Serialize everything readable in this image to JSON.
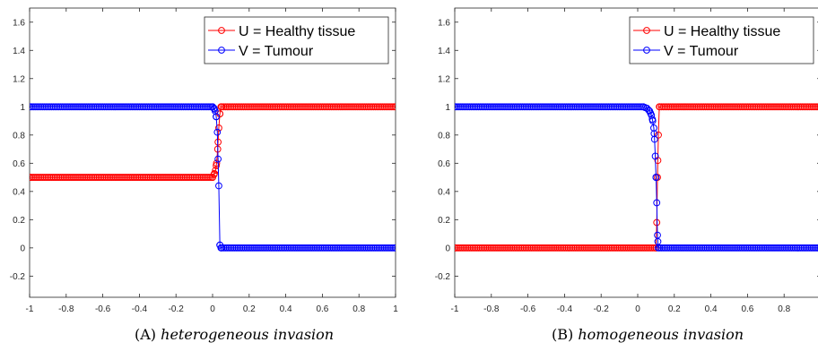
{
  "chart_data": [
    {
      "type": "scatter",
      "xlim": [
        -1,
        1
      ],
      "ylim": [
        -0.35,
        1.7
      ],
      "x_ticks": [
        -1,
        -0.8,
        -0.6,
        -0.4,
        -0.2,
        0,
        0.2,
        0.4,
        0.6,
        0.8,
        1
      ],
      "x_tick_labels": [
        "-1",
        "-0.8",
        "-0.6",
        "-0.4",
        "-0.2",
        "0",
        "0.2",
        "0.4",
        "0.6",
        "0.8",
        "1"
      ],
      "y_ticks": [
        -0.2,
        0,
        0.2,
        0.4,
        0.6,
        0.8,
        1,
        1.2,
        1.4,
        1.6
      ],
      "y_tick_labels": [
        "-0.2",
        "0",
        "0.2",
        "0.4",
        "0.6",
        "0.8",
        "1",
        "1.2",
        "1.4",
        "1.6"
      ],
      "grid": false,
      "legend_position": "top-right",
      "series": [
        {
          "name": "U = Healthy tissue",
          "color": "#ff0000",
          "marker": "circle",
          "x": [
            -1,
            0.0,
            0.008,
            0.016,
            0.022,
            0.028,
            0.034,
            0.04,
            0.046,
            1
          ],
          "y": [
            0.5,
            0.5,
            0.52,
            0.55,
            0.6,
            0.7,
            0.85,
            0.95,
            1.0,
            1.0
          ]
        },
        {
          "name": "V = Tumour",
          "color": "#0000ff",
          "marker": "circle",
          "x": [
            -1,
            0.0,
            0.008,
            0.014,
            0.02,
            0.026,
            0.034,
            0.04,
            0.046,
            1
          ],
          "y": [
            1.0,
            1.0,
            0.99,
            0.97,
            0.93,
            0.82,
            0.44,
            0.02,
            0.0,
            0.0
          ]
        }
      ]
    },
    {
      "type": "scatter",
      "xlim": [
        -1,
        1
      ],
      "ylim": [
        -0.35,
        1.7
      ],
      "x_ticks": [
        -1,
        -0.8,
        -0.6,
        -0.4,
        -0.2,
        0,
        0.2,
        0.4,
        0.6,
        0.8,
        1
      ],
      "x_tick_labels": [
        "-1",
        "-0.8",
        "-0.6",
        "-0.4",
        "-0.2",
        "0",
        "0.2",
        "0.4",
        "0.6",
        "0.8",
        ""
      ],
      "y_ticks": [
        -0.2,
        0,
        0.2,
        0.4,
        0.6,
        0.8,
        1,
        1.2,
        1.4,
        1.6
      ],
      "y_tick_labels": [
        "-0.2",
        "0",
        "0.2",
        "0.4",
        "0.6",
        "0.8",
        "1",
        "1.2",
        "1.4",
        "1.6"
      ],
      "grid": false,
      "legend_position": "top-right",
      "series": [
        {
          "name": "U = Healthy tissue",
          "color": "#ff0000",
          "marker": "circle",
          "x": [
            -1,
            0.1,
            0.104,
            0.108,
            0.113,
            0.118,
            1
          ],
          "y": [
            0.0,
            0.0,
            0.18,
            0.5,
            0.8,
            1.0,
            1.0
          ]
        },
        {
          "name": "V = Tumour",
          "color": "#0000ff",
          "marker": "circle",
          "x": [
            -1,
            0.03,
            0.05,
            0.065,
            0.075,
            0.082,
            0.088,
            0.092,
            0.096,
            0.1,
            0.104,
            0.108,
            0.112,
            1
          ],
          "y": [
            1.0,
            1.0,
            0.99,
            0.97,
            0.94,
            0.9,
            0.85,
            0.77,
            0.65,
            0.5,
            0.32,
            0.09,
            0.0,
            0.0
          ]
        }
      ]
    }
  ],
  "captions": [
    {
      "label": "(A)",
      "text": "heterogeneous invasion"
    },
    {
      "label": "(B)",
      "text": "homogeneous invasion"
    }
  ]
}
